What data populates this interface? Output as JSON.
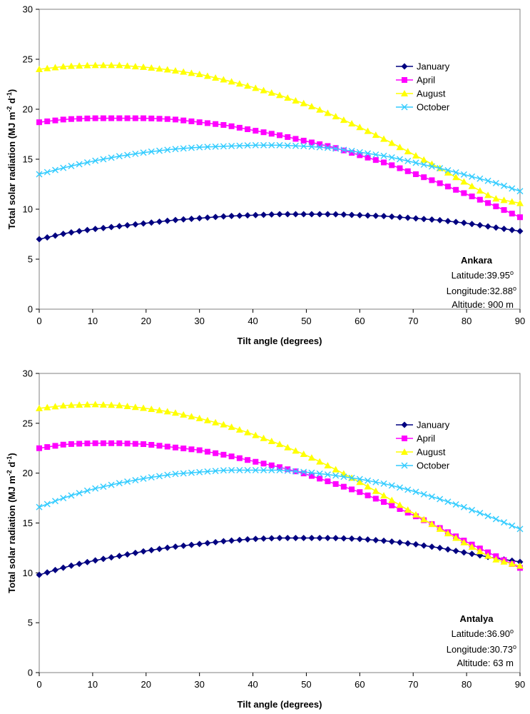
{
  "chart_data": [
    {
      "type": "line",
      "panel": "ankara",
      "x": [
        0,
        5,
        10,
        15,
        20,
        25,
        30,
        35,
        40,
        45,
        50,
        55,
        60,
        65,
        70,
        75,
        80,
        85,
        90
      ],
      "xlim": [
        0,
        90
      ],
      "ylim": [
        0,
        30
      ],
      "xticks": [
        0,
        10,
        20,
        30,
        40,
        50,
        60,
        70,
        80,
        90
      ],
      "yticks": [
        0,
        5,
        10,
        15,
        20,
        25,
        30
      ],
      "xlabel": "Tilt angle (degrees)",
      "ylabel": {
        "main": "Total solar radiation (MJ m",
        "sup1": "-2",
        "mid": " d",
        "sup2": "-1",
        "end": ")"
      },
      "series": [
        {
          "name": "January",
          "color": "#000080",
          "marker": "diamond",
          "values": [
            7.0,
            7.6,
            8.0,
            8.3,
            8.6,
            8.9,
            9.1,
            9.3,
            9.4,
            9.5,
            9.5,
            9.5,
            9.4,
            9.3,
            9.1,
            8.9,
            8.6,
            8.2,
            7.8
          ]
        },
        {
          "name": "April",
          "color": "#ff00ff",
          "marker": "square",
          "values": [
            18.7,
            19.0,
            19.1,
            19.1,
            19.1,
            19.0,
            18.7,
            18.4,
            17.9,
            17.4,
            16.8,
            16.2,
            15.4,
            14.6,
            13.6,
            12.6,
            11.5,
            10.4,
            9.2
          ]
        },
        {
          "name": "August",
          "color": "#ffff00",
          "marker": "triangle",
          "values": [
            24.0,
            24.3,
            24.4,
            24.4,
            24.2,
            23.9,
            23.5,
            22.9,
            22.2,
            21.4,
            20.5,
            19.4,
            18.2,
            16.9,
            15.5,
            14.1,
            12.6,
            11.1,
            10.6
          ]
        },
        {
          "name": "October",
          "color": "#33ccff",
          "marker": "x",
          "values": [
            13.5,
            14.2,
            14.8,
            15.3,
            15.7,
            16.0,
            16.2,
            16.3,
            16.4,
            16.4,
            16.3,
            16.1,
            15.7,
            15.3,
            14.7,
            14.1,
            13.4,
            12.7,
            11.8
          ]
        }
      ],
      "info": {
        "city": "Ankara",
        "latitude": "Latitude:39.95",
        "longitude": "Longitude:32.88",
        "altitude": "Altitude: 900 m",
        "degree": "o"
      }
    },
    {
      "type": "line",
      "panel": "antalya",
      "x": [
        0,
        5,
        10,
        15,
        20,
        25,
        30,
        35,
        40,
        45,
        50,
        55,
        60,
        65,
        70,
        75,
        80,
        85,
        90
      ],
      "xlim": [
        0,
        90
      ],
      "ylim": [
        0,
        30
      ],
      "xticks": [
        0,
        10,
        20,
        30,
        40,
        50,
        60,
        70,
        80,
        90
      ],
      "yticks": [
        0,
        5,
        10,
        15,
        20,
        25,
        30
      ],
      "xlabel": "Tilt angle (degrees)",
      "ylabel": {
        "main": "Total solar radiation (MJ m",
        "sup1": "-2",
        "mid": " d",
        "sup2": "-1",
        "end": ")"
      },
      "series": [
        {
          "name": "January",
          "color": "#000080",
          "marker": "diamond",
          "values": [
            9.8,
            10.6,
            11.2,
            11.7,
            12.2,
            12.6,
            12.9,
            13.2,
            13.4,
            13.5,
            13.5,
            13.5,
            13.4,
            13.2,
            12.9,
            12.5,
            12.0,
            11.5,
            11.1
          ]
        },
        {
          "name": "April",
          "color": "#ff00ff",
          "marker": "square",
          "values": [
            22.5,
            22.9,
            23.0,
            23.0,
            22.9,
            22.6,
            22.3,
            21.8,
            21.2,
            20.6,
            19.9,
            19.0,
            18.1,
            17.0,
            15.8,
            14.5,
            13.1,
            11.8,
            10.5
          ]
        },
        {
          "name": "August",
          "color": "#ffff00",
          "marker": "triangle",
          "values": [
            26.5,
            26.8,
            26.9,
            26.8,
            26.5,
            26.1,
            25.5,
            24.8,
            23.9,
            22.9,
            21.8,
            20.5,
            19.1,
            17.6,
            16.0,
            14.4,
            12.9,
            11.4,
            10.7
          ]
        },
        {
          "name": "October",
          "color": "#33ccff",
          "marker": "x",
          "values": [
            16.6,
            17.6,
            18.4,
            19.0,
            19.5,
            19.9,
            20.1,
            20.3,
            20.3,
            20.3,
            20.1,
            19.8,
            19.4,
            18.9,
            18.2,
            17.4,
            16.5,
            15.5,
            14.4
          ]
        }
      ],
      "info": {
        "city": "Antalya",
        "latitude": "Latitude:36.90",
        "longitude": "Longitude:30.73",
        "altitude": "Altitude: 63 m",
        "degree": "o"
      }
    }
  ]
}
